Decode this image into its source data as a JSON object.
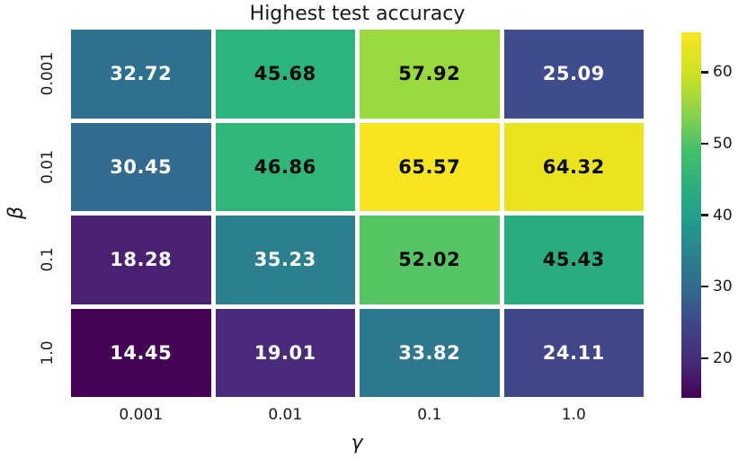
{
  "figure": {
    "background": "#ffffff",
    "text_color": "#1a1a1a"
  },
  "chart_data": {
    "type": "heatmap",
    "title": "Highest test accuracy",
    "xlabel": "γ",
    "ylabel": "β",
    "x_categories": [
      "0.001",
      "0.01",
      "0.1",
      "1.0"
    ],
    "y_categories": [
      "0.001",
      "0.01",
      "0.1",
      "1.0"
    ],
    "values": [
      [
        32.72,
        45.68,
        57.92,
        25.09
      ],
      [
        30.45,
        46.86,
        65.57,
        64.32
      ],
      [
        18.28,
        35.23,
        52.02,
        45.43
      ],
      [
        14.45,
        19.01,
        33.82,
        24.11
      ]
    ],
    "cell_colors": [
      [
        "#2d718e",
        "#2db47e",
        "#99d83e",
        "#3e4c8b"
      ],
      [
        "#326b8e",
        "#31b679",
        "#f6e51f",
        "#e9e41e"
      ],
      [
        "#482173",
        "#2c7f8e",
        "#57c566",
        "#2aab80"
      ],
      [
        "#440556",
        "#4a2a7a",
        "#2e788e",
        "#414689"
      ]
    ],
    "cell_text_colors": [
      [
        "w",
        "k",
        "k",
        "w"
      ],
      [
        "w",
        "k",
        "k",
        "k"
      ],
      [
        "w",
        "w",
        "k",
        "k"
      ],
      [
        "w",
        "w",
        "w",
        "w"
      ]
    ],
    "colormap": "viridis",
    "vmin": 14.45,
    "vmax": 65.57,
    "grid_on": false,
    "colorbar": {
      "position": "right",
      "ticks": [
        20,
        30,
        40,
        50,
        60
      ],
      "gradient_stops": [
        {
          "pos": 0.0,
          "color": "#440154"
        },
        {
          "pos": 0.09,
          "color": "#472777"
        },
        {
          "pos": 0.18,
          "color": "#423f85"
        },
        {
          "pos": 0.28,
          "color": "#34648d"
        },
        {
          "pos": 0.38,
          "color": "#2a7f8e"
        },
        {
          "pos": 0.48,
          "color": "#219c8c"
        },
        {
          "pos": 0.58,
          "color": "#2bb07d"
        },
        {
          "pos": 0.68,
          "color": "#46c06b"
        },
        {
          "pos": 0.78,
          "color": "#8bd44a"
        },
        {
          "pos": 0.88,
          "color": "#c9e125"
        },
        {
          "pos": 1.0,
          "color": "#f8e621"
        }
      ]
    }
  }
}
